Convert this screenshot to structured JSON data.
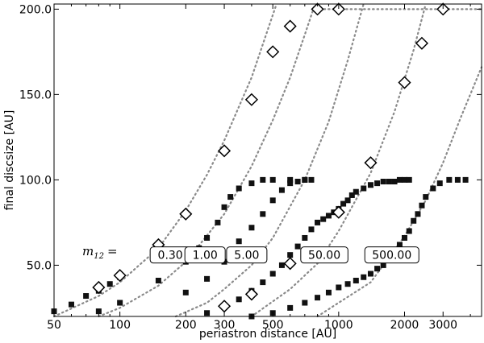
{
  "chart_data": {
    "type": "scatter",
    "xlabel": "periastron distance [AU]",
    "ylabel": "final discsize [AU]",
    "xscale": "log",
    "xlim": [
      50,
      4500
    ],
    "ylim": [
      20,
      203
    ],
    "x_ticks": [
      50,
      100,
      200,
      300,
      500,
      1000,
      2000,
      3000
    ],
    "x_tick_labels": [
      "50",
      "100",
      "200",
      "300",
      "500",
      "1000",
      "2000",
      "3000"
    ],
    "y_ticks": [
      50,
      100,
      150,
      200
    ],
    "y_tick_labels": [
      "50.0",
      "100.0",
      "150.0",
      "200.0"
    ],
    "grid": false,
    "mass_ratio_label": "m",
    "mass_ratio_subscript": "12",
    "mass_ratio_equals": "=",
    "curve_labels": [
      {
        "text": "0.30",
        "x": 170,
        "y": 56
      },
      {
        "text": "1.00",
        "x": 245,
        "y": 56
      },
      {
        "text": "5.00",
        "x": 380,
        "y": 56
      },
      {
        "text": "50.00",
        "x": 860,
        "y": 56
      },
      {
        "text": "500.00",
        "x": 1750,
        "y": 56
      }
    ],
    "series": [
      {
        "marker": "filled-square",
        "points": [
          [
            50,
            23
          ],
          [
            60,
            27
          ],
          [
            70,
            32
          ],
          [
            80,
            35
          ],
          [
            90,
            39
          ],
          [
            100,
            43
          ],
          [
            80,
            23
          ],
          [
            100,
            28
          ],
          [
            150,
            41
          ],
          [
            200,
            52
          ],
          [
            230,
            60
          ],
          [
            250,
            66
          ],
          [
            280,
            75
          ],
          [
            300,
            84
          ],
          [
            320,
            90
          ],
          [
            350,
            95
          ],
          [
            400,
            98
          ],
          [
            450,
            100
          ],
          [
            500,
            100
          ],
          [
            600,
            100
          ],
          [
            700,
            100
          ],
          [
            750,
            100
          ],
          [
            150,
            18
          ],
          [
            200,
            34
          ],
          [
            250,
            42
          ],
          [
            300,
            52
          ],
          [
            350,
            64
          ],
          [
            400,
            72
          ],
          [
            450,
            80
          ],
          [
            500,
            88
          ],
          [
            550,
            94
          ],
          [
            600,
            98
          ],
          [
            650,
            99
          ],
          [
            700,
            100
          ],
          [
            250,
            22
          ],
          [
            300,
            26
          ],
          [
            350,
            30
          ],
          [
            400,
            35
          ],
          [
            450,
            40
          ],
          [
            500,
            45
          ],
          [
            550,
            50
          ],
          [
            600,
            56
          ],
          [
            650,
            61
          ],
          [
            700,
            66
          ],
          [
            750,
            71
          ],
          [
            800,
            75
          ],
          [
            850,
            77
          ],
          [
            900,
            79
          ],
          [
            950,
            81
          ],
          [
            1000,
            83
          ],
          [
            1050,
            86
          ],
          [
            1100,
            88
          ],
          [
            1150,
            91
          ],
          [
            1200,
            93
          ],
          [
            1300,
            95
          ],
          [
            1400,
            97
          ],
          [
            1500,
            98
          ],
          [
            1600,
            99
          ],
          [
            1700,
            99
          ],
          [
            1800,
            99
          ],
          [
            1900,
            100
          ],
          [
            2000,
            100
          ],
          [
            2100,
            100
          ],
          [
            400,
            20
          ],
          [
            500,
            22
          ],
          [
            600,
            25
          ],
          [
            700,
            28
          ],
          [
            800,
            31
          ],
          [
            900,
            34
          ],
          [
            1000,
            37
          ],
          [
            1100,
            39
          ],
          [
            1200,
            41
          ],
          [
            1300,
            43
          ],
          [
            1400,
            45
          ],
          [
            1500,
            48
          ],
          [
            1600,
            50
          ],
          [
            1700,
            55
          ],
          [
            1800,
            59
          ],
          [
            1900,
            62
          ],
          [
            2000,
            66
          ],
          [
            2100,
            70
          ],
          [
            2200,
            76
          ],
          [
            2300,
            80
          ],
          [
            2400,
            85
          ],
          [
            2500,
            90
          ],
          [
            2700,
            95
          ],
          [
            2900,
            98
          ],
          [
            3200,
            100
          ],
          [
            3500,
            100
          ],
          [
            3800,
            100
          ]
        ]
      },
      {
        "marker": "open-diamond",
        "points": [
          [
            80,
            37
          ],
          [
            100,
            44
          ],
          [
            150,
            62
          ],
          [
            200,
            80
          ],
          [
            300,
            117
          ],
          [
            400,
            147
          ],
          [
            500,
            175
          ],
          [
            600,
            190
          ],
          [
            800,
            200
          ],
          [
            1000,
            200
          ],
          [
            1000,
            81
          ],
          [
            1400,
            110
          ],
          [
            2000,
            157
          ],
          [
            2400,
            180
          ],
          [
            3000,
            200
          ],
          [
            300,
            26
          ],
          [
            400,
            33
          ],
          [
            600,
            51
          ]
        ]
      },
      {
        "marker": "dotted-line",
        "curves": [
          {
            "label": "0.30",
            "points": [
              [
                50,
                20
              ],
              [
                80,
                32
              ],
              [
                100,
                40
              ],
              [
                150,
                60
              ],
              [
                200,
                82
              ],
              [
                250,
                103
              ],
              [
                300,
                123
              ],
              [
                400,
                160
              ],
              [
                480,
                190
              ],
              [
                520,
                203
              ]
            ]
          },
          {
            "label": "1.00",
            "points": [
              [
                80,
                20
              ],
              [
                100,
                25
              ],
              [
                150,
                38
              ],
              [
                200,
                52
              ],
              [
                300,
                80
              ],
              [
                400,
                108
              ],
              [
                500,
                135
              ],
              [
                600,
                160
              ],
              [
                700,
                185
              ],
              [
                780,
                203
              ]
            ]
          },
          {
            "label": "5.00",
            "points": [
              [
                180,
                20
              ],
              [
                250,
                28
              ],
              [
                300,
                36
              ],
              [
                400,
                50
              ],
              [
                500,
                66
              ],
              [
                700,
                100
              ],
              [
                900,
                134
              ],
              [
                1100,
                170
              ],
              [
                1300,
                203
              ]
            ]
          },
          {
            "label": "50.00",
            "points": [
              [
                400,
                20
              ],
              [
                600,
                36
              ],
              [
                800,
                51
              ],
              [
                1000,
                70
              ],
              [
                1400,
                104
              ],
              [
                1800,
                140
              ],
              [
                2200,
                176
              ],
              [
                2500,
                203
              ]
            ]
          },
          {
            "label": "500.00",
            "points": [
              [
                800,
                20
              ],
              [
                1000,
                28
              ],
              [
                1400,
                40
              ],
              [
                2000,
                67
              ],
              [
                2500,
                88
              ],
              [
                3000,
                110
              ],
              [
                3600,
                136
              ],
              [
                4500,
                166
              ]
            ]
          },
          {
            "label": "",
            "points": [
              [
                780,
                200
              ],
              [
                4500,
                200
              ]
            ]
          }
        ]
      }
    ]
  }
}
